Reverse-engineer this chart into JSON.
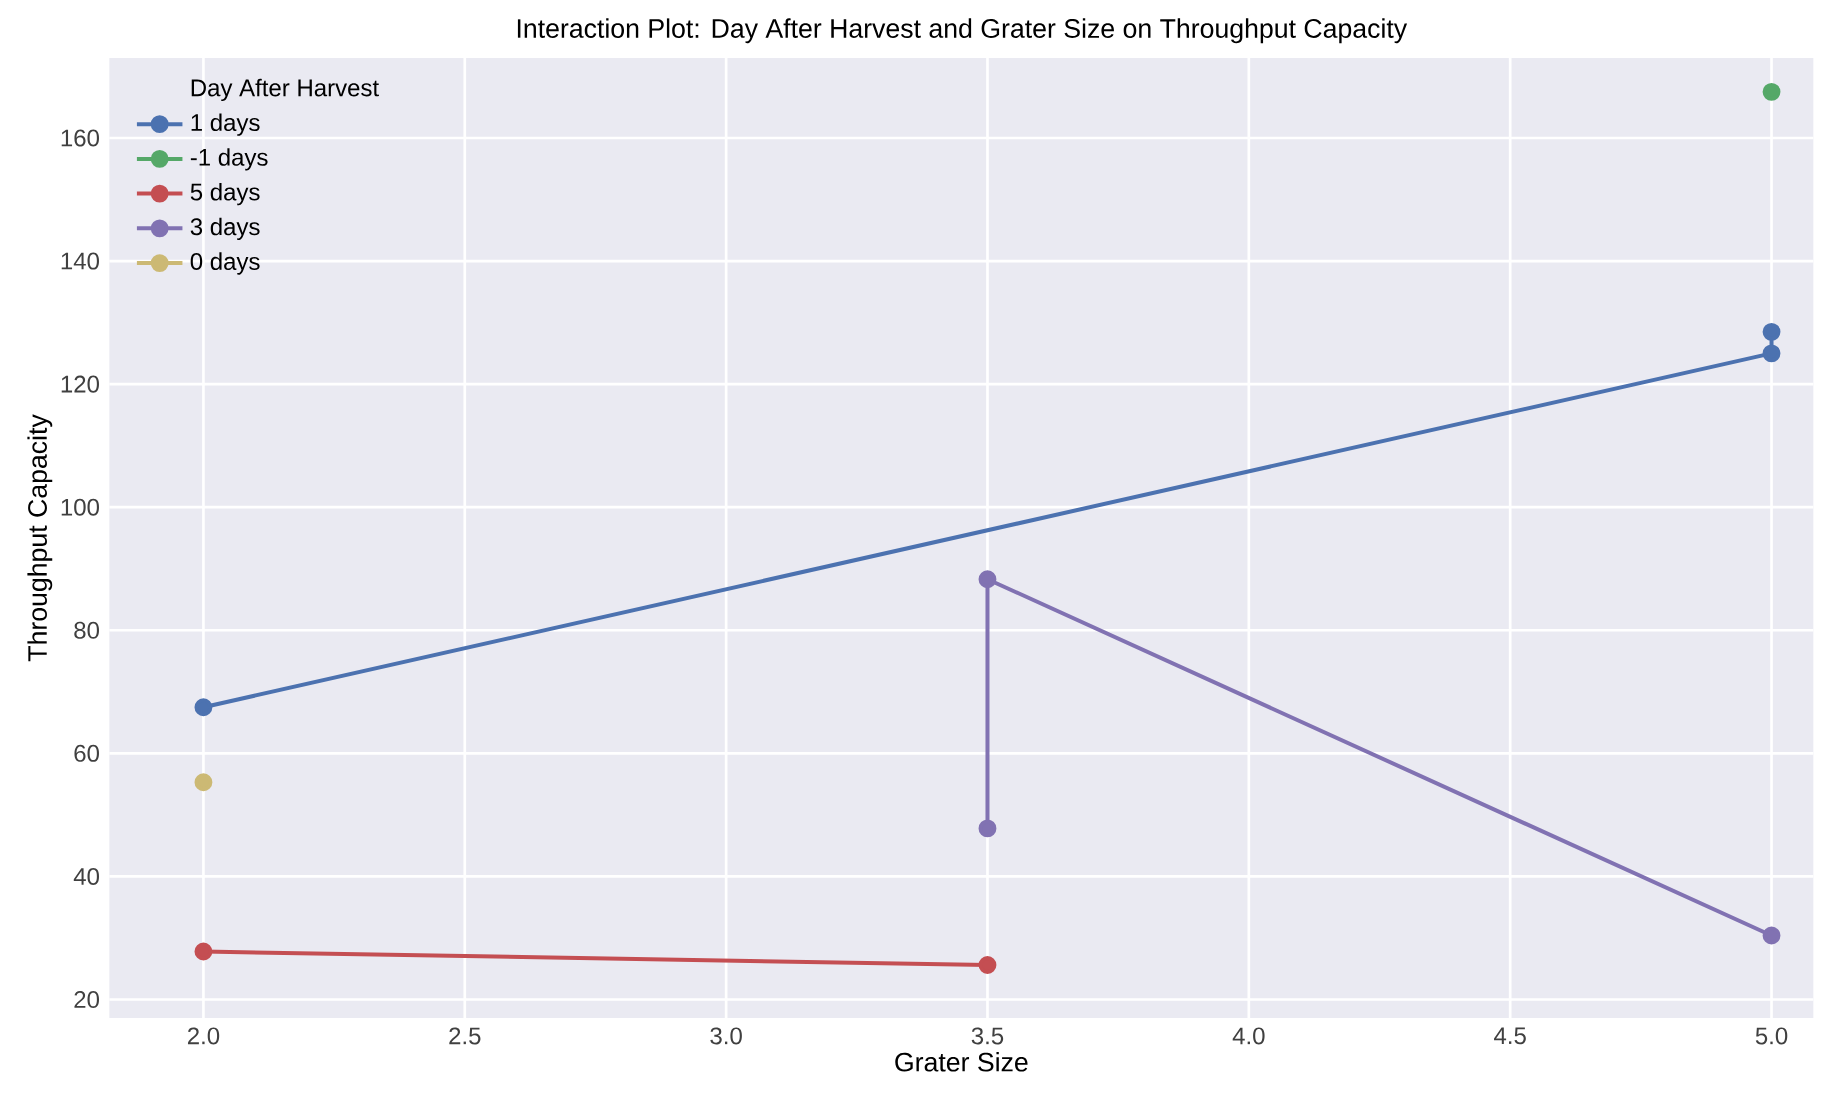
{
  "chart_data": {
    "type": "line",
    "title": "Interaction Plot: Day After Harvest and Grater Size on Throughput Capacity",
    "xlabel": "Grater Size",
    "ylabel": "Throughput Capacity",
    "legend_title": "Day After Harvest",
    "legend": "top left",
    "grid": true,
    "marker": "circle",
    "line_style": "solid",
    "xlim": [
      1.82,
      5.08
    ],
    "ylim": [
      17,
      173
    ],
    "xticks": [
      {
        "value": 2,
        "label": "2.0"
      },
      {
        "value": 2.5,
        "label": "2.5"
      },
      {
        "value": 3,
        "label": "3.0"
      },
      {
        "value": 3.5,
        "label": "3.5"
      },
      {
        "value": 4,
        "label": "4.0"
      },
      {
        "value": 4.5,
        "label": "4.5"
      },
      {
        "value": 5,
        "label": "5.0"
      }
    ],
    "yticks": [
      20,
      40,
      60,
      80,
      100,
      120,
      140,
      160
    ],
    "series": [
      {
        "name": "1 days",
        "color": "#4c72b0",
        "x": [
          2,
          5,
          5
        ],
        "values": [
          67.5,
          125,
          128.5
        ]
      },
      {
        "name": "-1 days",
        "color": "#55a868",
        "x": [
          5
        ],
        "values": [
          167.5
        ]
      },
      {
        "name": "5 days",
        "color": "#c44e52",
        "x": [
          2,
          3.5
        ],
        "values": [
          27.8,
          25.6
        ]
      },
      {
        "name": "3 days",
        "color": "#8172b2",
        "x": [
          3.5,
          3.5,
          5
        ],
        "values": [
          47.8,
          88.3,
          30.4
        ]
      },
      {
        "name": "0 days",
        "color": "#ccb974",
        "x": [
          2
        ],
        "values": [
          55.3
        ]
      }
    ]
  }
}
